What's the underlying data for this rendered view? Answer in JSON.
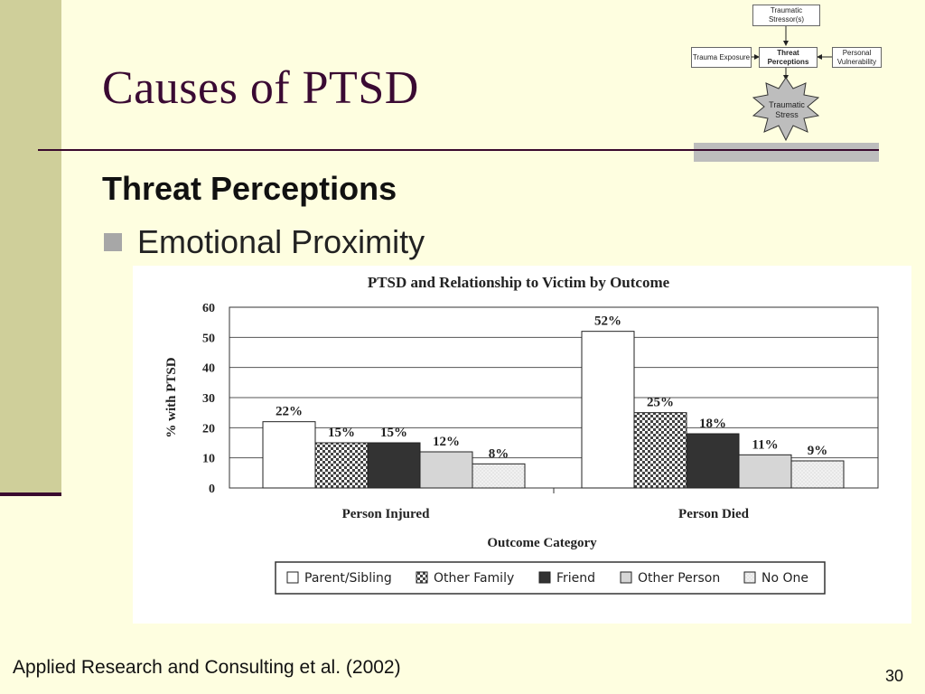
{
  "slide": {
    "title": "Causes of PTSD",
    "subheading": "Threat Perceptions",
    "bullet": "Emotional Proximity",
    "footer": "Applied Research and Consulting et al. (2002)",
    "page_number": "30"
  },
  "diagram": {
    "top": "Traumatic Stressor(s)",
    "left": "Trauma Exposure",
    "center": "Threat Perceptions",
    "right": "Personal Vulnerability",
    "burst": "Traumatic Stress"
  },
  "chart_data": {
    "type": "bar",
    "title": "PTSD and Relationship to Victim by Outcome",
    "ylabel": "% with PTSD",
    "xlabel": "Outcome Category",
    "ylim": [
      0,
      60
    ],
    "yticks": [
      "0",
      "10",
      "20",
      "30",
      "40",
      "50",
      "60"
    ],
    "categories": [
      "Person Injured",
      "Person Died"
    ],
    "grid": true,
    "legend_position": "bottom",
    "series": [
      {
        "name": "Parent/Sibling",
        "values": [
          22,
          52
        ],
        "labels": [
          "22%",
          "52%"
        ],
        "pattern": "white"
      },
      {
        "name": "Other Family",
        "values": [
          15,
          25
        ],
        "labels": [
          "15%",
          "25%"
        ],
        "pattern": "checker"
      },
      {
        "name": "Friend",
        "values": [
          15,
          18
        ],
        "labels": [
          "15%",
          "18%"
        ],
        "pattern": "dark"
      },
      {
        "name": "Other Person",
        "values": [
          12,
          11
        ],
        "labels": [
          "12%",
          "11%"
        ],
        "pattern": "gray"
      },
      {
        "name": "No One",
        "values": [
          8,
          9
        ],
        "labels": [
          "8%",
          "9%"
        ],
        "pattern": "dots"
      }
    ]
  }
}
